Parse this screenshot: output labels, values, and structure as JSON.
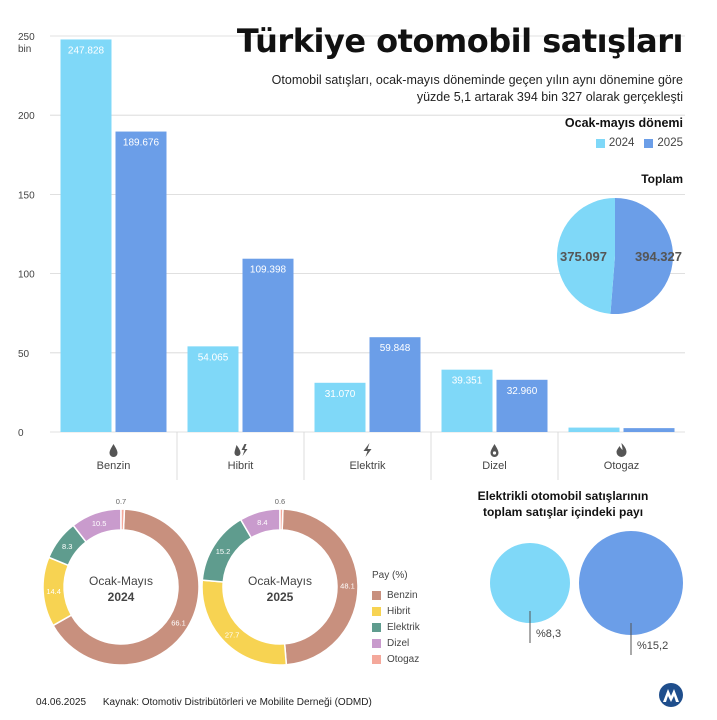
{
  "title": "Türkiye otomobil satışları",
  "subtitle_lines": [
    "Otomobil satışları, ocak-mayıs döneminde geçen yılın aynı dönemine göre",
    "yüzde 5,1 artarak 394 bin 327 olarak gerçekleşti"
  ],
  "period_title": "Ocak-mayıs dönemi",
  "legend_years": [
    "2024",
    "2025"
  ],
  "colors": {
    "y2024": "#7fd8f8",
    "y2025": "#6b9ee8",
    "benzin": "#c8907e",
    "hibrit": "#f7d352",
    "elektrik": "#5f9c8e",
    "dizel": "#c99bcd",
    "otogaz": "#f4a89b",
    "grid": "#d6d6d6"
  },
  "total": {
    "title": "Toplam",
    "v2024": 375097,
    "v2025": 394327,
    "label2024": "375.097",
    "label2025": "394.327"
  },
  "chart_data": [
    {
      "type": "bar",
      "ylabel_unit": "bin",
      "ylim": [
        0,
        250
      ],
      "yticks": [
        "0",
        "50",
        "100",
        "150",
        "200",
        "250"
      ],
      "categories": [
        "Benzin",
        "Hibrit",
        "Elektrik",
        "Dizel",
        "Otogaz"
      ],
      "category_icons": [
        "drop-icon",
        "hybrid-icon",
        "bolt-icon",
        "diesel-drop-icon",
        "flame-icon"
      ],
      "series": [
        {
          "name": "2024",
          "values": [
            247.828,
            54.065,
            31.07,
            39.351,
            2.783
          ],
          "labels": [
            "247.828",
            "54.065",
            "31.070",
            "39.351",
            "2.783"
          ]
        },
        {
          "name": "2025",
          "values": [
            189.676,
            109.398,
            59.848,
            32.96,
            2.445
          ],
          "labels": [
            "189.676",
            "109.398",
            "59.848",
            "32.960",
            "2.445"
          ]
        }
      ]
    },
    {
      "type": "pie",
      "title": "Toplam",
      "categories": [
        "2024",
        "2025"
      ],
      "values": [
        375097,
        394327
      ],
      "labels": [
        "375.097",
        "394.327"
      ]
    },
    {
      "type": "donut",
      "center_label": [
        "Ocak-Mayıs",
        "2024"
      ],
      "categories": [
        "Benzin",
        "Hibrit",
        "Elektrik",
        "Dizel",
        "Otogaz"
      ],
      "values": [
        66.1,
        14.4,
        8.3,
        10.5,
        0.7
      ],
      "labels": [
        "66.1",
        "14.4",
        "8.3",
        "10.5",
        "0.7"
      ]
    },
    {
      "type": "donut",
      "center_label": [
        "Ocak-Mayıs",
        "2025"
      ],
      "categories": [
        "Benzin",
        "Hibrit",
        "Elektrik",
        "Dizel",
        "Otogaz"
      ],
      "values": [
        48.1,
        27.7,
        15.2,
        8.4,
        0.6
      ],
      "labels": [
        "48.1",
        "27.7",
        "15.2",
        "8.4",
        "0.6"
      ]
    },
    {
      "type": "bubble",
      "title": "Elektrikli otomobil satışlarının toplam satışlar içindeki payı",
      "categories": [
        "2024",
        "2025"
      ],
      "values": [
        8.3,
        15.2
      ],
      "labels": [
        "%8,3",
        "%15,2"
      ]
    }
  ],
  "pay_legend": {
    "title": "Pay (%)",
    "items": [
      "Benzin",
      "Hibrit",
      "Elektrik",
      "Dizel",
      "Otogaz"
    ]
  },
  "share_title_lines": [
    "Elektrikli otomobil satışlarının",
    "toplam satışlar içindeki payı"
  ],
  "footer": {
    "date": "04.06.2025",
    "source": "Kaynak: Otomotiv Distribütörleri ve Mobilite Derneği (ODMD)"
  },
  "logo_icon": "aa-logo-icon"
}
